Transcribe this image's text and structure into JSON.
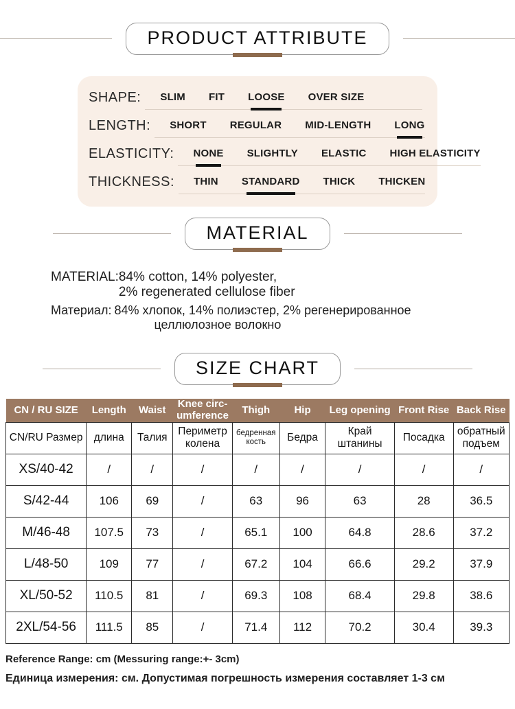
{
  "colors": {
    "accent_brown_bar": "#8e6b4e",
    "table_header_brown": "#9c7a62",
    "panel_cream": "#f9efe7",
    "table_border": "#2b2b2b",
    "selected_underline": "#141414"
  },
  "sections": {
    "product_attribute": {
      "title": "PRODUCT ATTRIBUTE",
      "rows": [
        {
          "label": "SHAPE:",
          "options": [
            "SLIM",
            "FIT",
            "LOOSE",
            "OVER SIZE"
          ],
          "selected": 2
        },
        {
          "label": "LENGTH:",
          "options": [
            "SHORT",
            "REGULAR",
            "MID-LENGTH",
            "LONG"
          ],
          "selected": 3
        },
        {
          "label": "ELASTICITY:",
          "options": [
            "NONE",
            "SLIGHTLY",
            "ELASTIC",
            "HIGH ELASTICITY"
          ],
          "selected": 0
        },
        {
          "label": "THICKNESS:",
          "options": [
            "THIN",
            "STANDARD",
            "THICK",
            "THICKEN"
          ],
          "selected": 1
        }
      ]
    },
    "material": {
      "title": "MATERIAL",
      "en_label": "MATERIAL:",
      "en_line1": "84% cotton, 14% polyester,",
      "en_line2": "2% regenerated cellulose fiber",
      "ru_label": "Материал:",
      "ru_line1": "84% хлопок, 14% полиэстер, 2% регенерированное",
      "ru_line2": "целлюлозное волокно"
    },
    "size_chart": {
      "title": "SIZE CHART",
      "columns": [
        {
          "en": "CN / RU SIZE",
          "ru": "CN/RU Размер"
        },
        {
          "en": "Length",
          "ru": "длина"
        },
        {
          "en": "Waist",
          "ru": "Талия"
        },
        {
          "en": "Knee circ-\numference",
          "ru": "Периметр\nколена"
        },
        {
          "en": "Thigh",
          "ru": "бедренная\nкость",
          "ru_small": true
        },
        {
          "en": "Hip",
          "ru": "Бедра"
        },
        {
          "en": "Leg opening",
          "ru": "Край\nштанины"
        },
        {
          "en": "Front Rise",
          "ru": "Посадка"
        },
        {
          "en": "Back Rise",
          "ru": "обратный\nподъем"
        }
      ],
      "rows": [
        {
          "size": "XS/40-42",
          "values": [
            "/",
            "/",
            "/",
            "/",
            "/",
            "/",
            "/",
            "/"
          ]
        },
        {
          "size": "S/42-44",
          "values": [
            "106",
            "69",
            "/",
            "63",
            "96",
            "63",
            "28",
            "36.5"
          ]
        },
        {
          "size": "M/46-48",
          "values": [
            "107.5",
            "73",
            "/",
            "65.1",
            "100",
            "64.8",
            "28.6",
            "37.2"
          ]
        },
        {
          "size": "L/48-50",
          "values": [
            "109",
            "77",
            "/",
            "67.2",
            "104",
            "66.6",
            "29.2",
            "37.9"
          ]
        },
        {
          "size": "XL/50-52",
          "values": [
            "110.5",
            "81",
            "/",
            "69.3",
            "108",
            "68.4",
            "29.8",
            "38.6"
          ]
        },
        {
          "size": "2XL/54-56",
          "values": [
            "111.5",
            "85",
            "/",
            "71.4",
            "112",
            "70.2",
            "30.4",
            "39.3"
          ]
        }
      ]
    },
    "footer": {
      "en": "Reference Range: cm (Messuring range:+- 3cm)",
      "ru": "Единица измерения: см. Допустимая погрешность измерения составляет 1-3 см"
    }
  }
}
